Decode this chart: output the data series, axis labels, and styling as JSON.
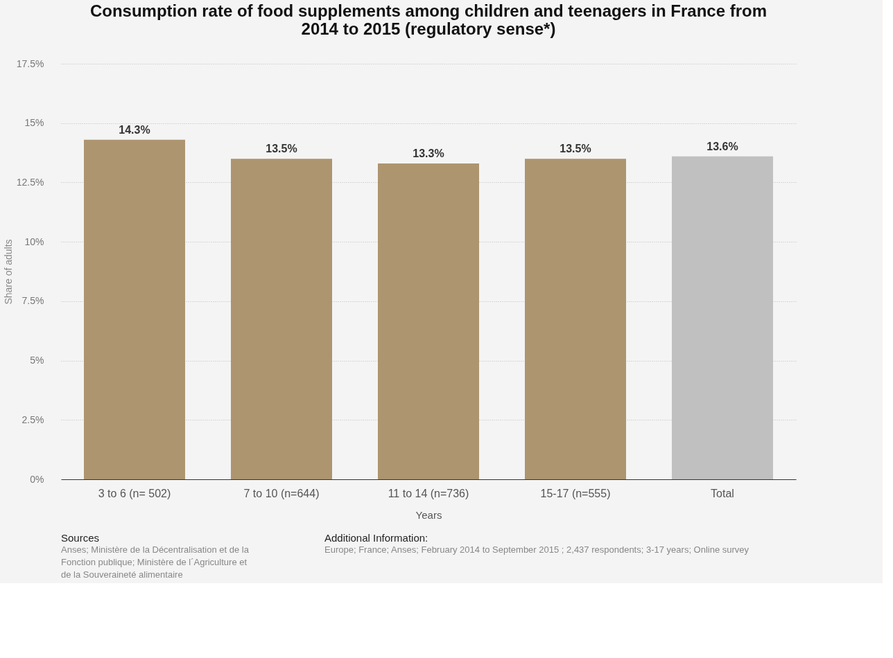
{
  "chart_data": {
    "type": "bar",
    "title": "Consumption rate of food supplements among children and teenagers in France from 2014 to 2015 (regulatory sense*)",
    "xlabel": "Years",
    "ylabel": "Share of adults",
    "categories": [
      "3 to 6 (n= 502)",
      "7 to 10 (n=644)",
      "11 to 14 (n=736)",
      "15-17 (n=555)",
      "Total"
    ],
    "values": [
      14.3,
      13.5,
      13.3,
      13.5,
      13.6
    ],
    "colors": [
      "#ad9570",
      "#ad9570",
      "#ad9570",
      "#ad9570",
      "#c0c0c0"
    ],
    "value_labels": [
      "14.3%",
      "13.5%",
      "13.3%",
      "13.5%",
      "13.6%"
    ],
    "ylim": [
      0,
      17.5
    ],
    "yticks": [
      {
        "value": 0,
        "label": "0%"
      },
      {
        "value": 2.5,
        "label": "2.5%"
      },
      {
        "value": 5,
        "label": "5%"
      },
      {
        "value": 7.5,
        "label": "7.5%"
      },
      {
        "value": 10,
        "label": "10%"
      },
      {
        "value": 12.5,
        "label": "12.5%"
      },
      {
        "value": 15,
        "label": "15%"
      },
      {
        "value": 17.5,
        "label": "17.5%"
      }
    ],
    "grid": "y",
    "annotations": [
      "Sources",
      "Anses; Ministère de la Décentralisation et de la Fonction publique; Ministère de l´Agriculture et de la Souveraineté alimentaire",
      "Additional Information:",
      "Europe; France; Anses; February 2014 to September 2015 ; 2,437 respondents; 3-17 years; Online survey"
    ]
  }
}
